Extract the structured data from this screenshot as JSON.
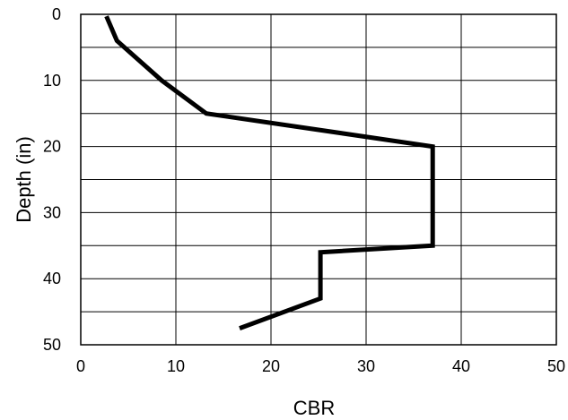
{
  "chart_data": {
    "type": "line",
    "title": "",
    "xlabel": "CBR",
    "ylabel": "Depth (in)",
    "xlim": [
      0,
      50
    ],
    "ylim": [
      0,
      50
    ],
    "y_inverted": true,
    "grid": true,
    "x_ticks": [
      0,
      10,
      20,
      30,
      40,
      50
    ],
    "y_ticks": [
      0,
      10,
      20,
      30,
      40,
      50
    ],
    "series": [
      {
        "x": [
          2.7,
          3.8,
          8.5,
          13.2,
          37.0,
          37.0,
          25.2,
          25.2,
          16.7
        ],
        "y": [
          0.3,
          4.0,
          10.0,
          15.0,
          20.0,
          35.0,
          36.0,
          43.0,
          47.5
        ]
      }
    ],
    "colors": {
      "line": "#000000",
      "grid": "#000000"
    }
  }
}
